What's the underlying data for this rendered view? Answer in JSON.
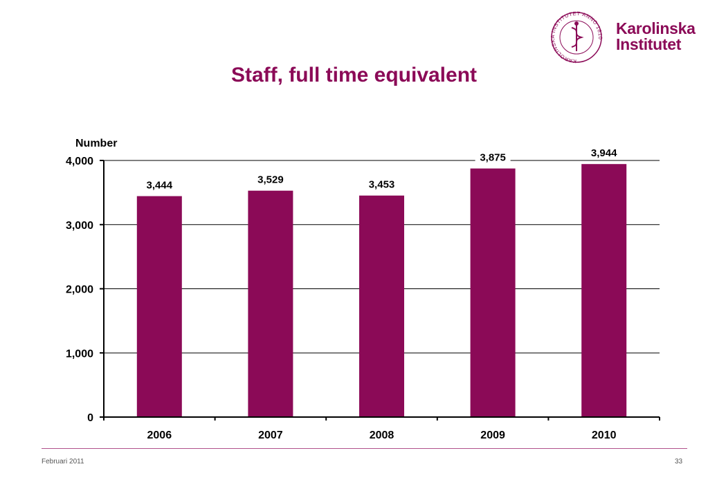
{
  "title": "Staff, full time equivalent",
  "logo": {
    "line1": "Karolinska",
    "line2": "Institutet",
    "seal_text": "KAROLINSKA INSTITUTET ANNO 1810",
    "icon": "karolinska-seal"
  },
  "footer": {
    "date": "Februari 2011",
    "page": "33"
  },
  "colors": {
    "brand": "#8b0a57",
    "bar": "#8b0a57",
    "grid": "#000000",
    "text": "#000000"
  },
  "chart_data": {
    "type": "bar",
    "title": "",
    "ylabel": "Number",
    "xlabel": "",
    "categories": [
      "2006",
      "2007",
      "2008",
      "2009",
      "2010"
    ],
    "values": [
      3444,
      3529,
      3453,
      3875,
      3944
    ],
    "value_labels": [
      "3,444",
      "3,529",
      "3,453",
      "3,875",
      "3,944"
    ],
    "ylim": [
      0,
      4000
    ],
    "yticks": [
      0,
      1000,
      2000,
      3000,
      4000
    ],
    "ytick_labels": [
      "0",
      "1,000",
      "2,000",
      "3,000",
      "4,000"
    ],
    "grid": true,
    "legend": "none"
  }
}
